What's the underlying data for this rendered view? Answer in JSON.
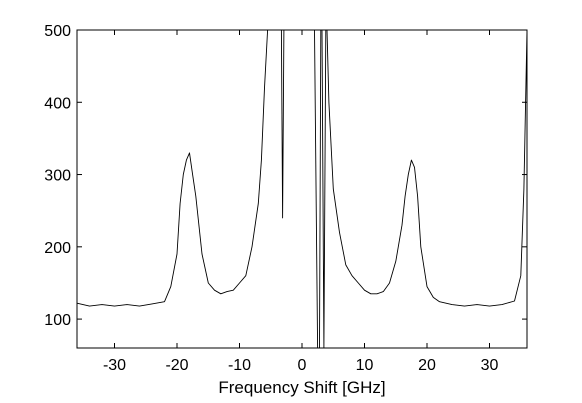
{
  "chart_data": {
    "type": "line",
    "title": "",
    "xlabel": "Frequency Shift [GHz]",
    "ylabel": "",
    "xlim": [
      -36,
      36
    ],
    "ylim": [
      60,
      500
    ],
    "xticks": [
      -30,
      -20,
      -10,
      0,
      10,
      20,
      30
    ],
    "yticks": [
      100,
      200,
      300,
      400,
      500
    ],
    "grid": false,
    "legend": "none",
    "line_color": "#000000",
    "series": [
      {
        "values_estimated": true,
        "x": [
          -36,
          -34,
          -32,
          -30,
          -28,
          -26,
          -24,
          -22,
          -21,
          -20,
          -19.5,
          -19,
          -18.5,
          -18,
          -17.5,
          -17,
          -16,
          -15,
          -14,
          -13,
          -12,
          -11,
          -10,
          -9,
          -8,
          -7,
          -6.5,
          -6,
          -5.5,
          -5.2,
          -4.8,
          -4,
          -3.3,
          -3.1,
          -2.9,
          -2,
          0,
          2,
          2.5,
          2.8,
          3.0,
          3.2,
          3.5,
          3.8,
          4.0,
          4.3,
          5,
          6,
          7,
          8,
          9,
          10,
          11,
          12,
          13,
          14,
          15,
          16,
          16.5,
          17,
          17.5,
          18,
          18.5,
          19,
          20,
          21,
          22,
          24,
          26,
          28,
          30,
          32,
          34,
          35,
          35.5,
          36
        ],
        "y": [
          122,
          118,
          120,
          118,
          120,
          118,
          121,
          124,
          145,
          190,
          260,
          300,
          320,
          330,
          300,
          270,
          190,
          150,
          140,
          135,
          138,
          140,
          150,
          160,
          200,
          260,
          320,
          420,
          500,
          500,
          500,
          500,
          500,
          240,
          500,
          500,
          500,
          500,
          60,
          60,
          500,
          500,
          60,
          500,
          500,
          400,
          280,
          220,
          175,
          160,
          150,
          140,
          135,
          135,
          138,
          150,
          180,
          230,
          270,
          300,
          320,
          310,
          270,
          200,
          145,
          130,
          124,
          120,
          118,
          120,
          118,
          120,
          125,
          160,
          280,
          500
        ]
      }
    ]
  }
}
